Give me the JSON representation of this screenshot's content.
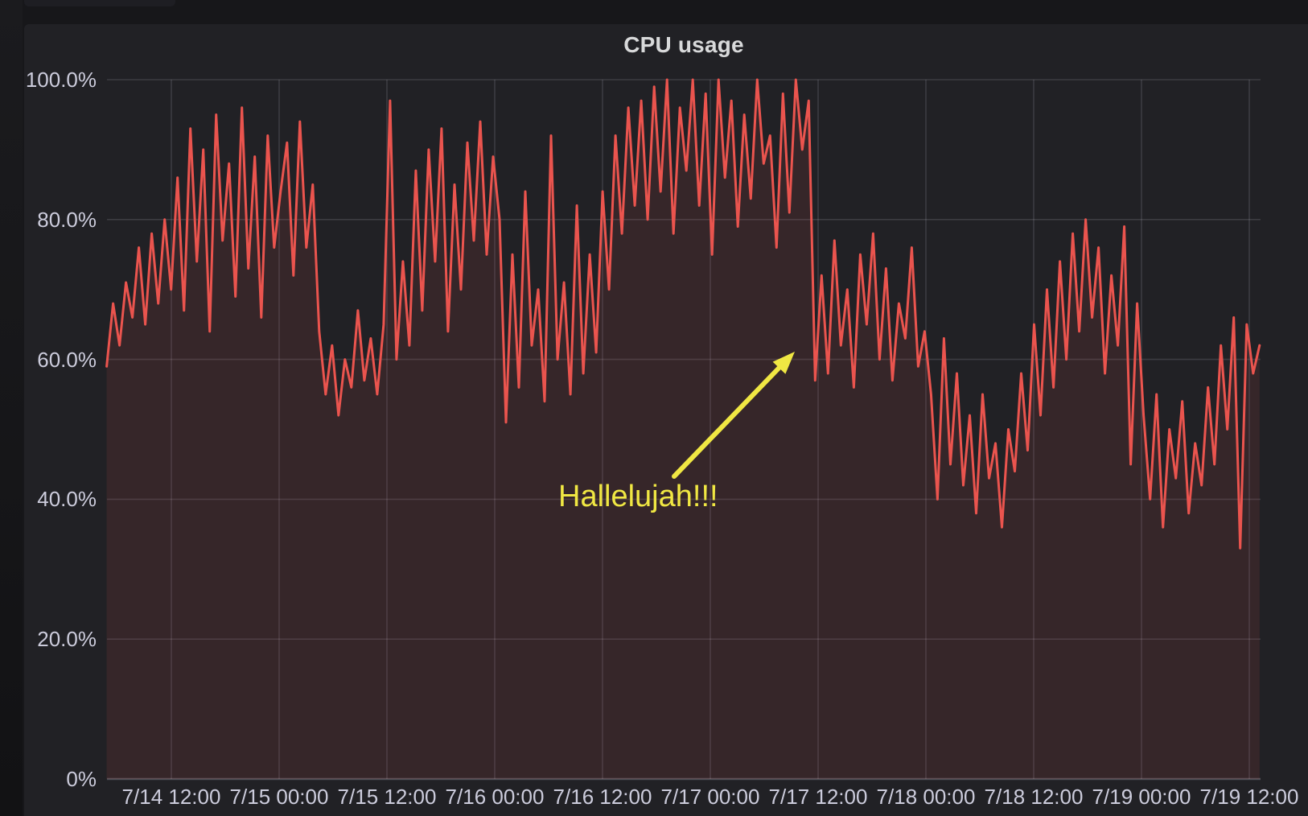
{
  "panel": {
    "title": "CPU usage"
  },
  "annotation": {
    "text": "Hallelujah!!!",
    "color": "#f0e743"
  },
  "colors": {
    "page_background": "#17171a",
    "panel_background": "#212125",
    "line": "#ea544e",
    "fill": "rgba(232,80,78,0.11)",
    "grid": "rgba(204,204,220,0.16)",
    "axis_line": "rgba(204,204,220,0.28)",
    "axis_text": "#ccccdc",
    "title_text": "#d8d9da"
  },
  "chart_data": {
    "type": "line",
    "title": "CPU usage",
    "unit": "percent",
    "ylim": [
      0,
      100
    ],
    "grid": true,
    "legend": "none",
    "y_ticks": [
      {
        "value": 0,
        "label": "0%"
      },
      {
        "value": 20,
        "label": "20.0%"
      },
      {
        "value": 40,
        "label": "40.0%"
      },
      {
        "value": 60,
        "label": "60.0%"
      },
      {
        "value": 80,
        "label": "80.0%"
      },
      {
        "value": 100,
        "label": "100.0%"
      }
    ],
    "x_ticks": [
      {
        "t": 12,
        "label": "7/14 12:00"
      },
      {
        "t": 24,
        "label": "7/15 00:00"
      },
      {
        "t": 36,
        "label": "7/15 12:00"
      },
      {
        "t": 48,
        "label": "7/16 00:00"
      },
      {
        "t": 60,
        "label": "7/16 12:00"
      },
      {
        "t": 72,
        "label": "7/17 00:00"
      },
      {
        "t": 84,
        "label": "7/17 12:00"
      },
      {
        "t": 96,
        "label": "7/18 00:00"
      },
      {
        "t": 108,
        "label": "7/18 12:00"
      },
      {
        "t": 120,
        "label": "7/19 00:00"
      },
      {
        "t": 132,
        "label": "7/19 12:00"
      }
    ],
    "series": [
      {
        "name": "CPU usage",
        "color": "#ea544e",
        "t_start_hours": 4.8,
        "t_step_hours": 0.717,
        "values": [
          59,
          68,
          62,
          71,
          66,
          76,
          65,
          78,
          68,
          80,
          70,
          86,
          67,
          93,
          74,
          90,
          64,
          95,
          77,
          88,
          69,
          96,
          73,
          89,
          66,
          92,
          76,
          84,
          91,
          72,
          94,
          76,
          85,
          64,
          55,
          62,
          52,
          60,
          56,
          67,
          57,
          63,
          55,
          65,
          97,
          60,
          74,
          62,
          87,
          67,
          90,
          74,
          93,
          64,
          85,
          70,
          91,
          77,
          94,
          75,
          89,
          80,
          51,
          75,
          56,
          84,
          62,
          70,
          54,
          92,
          60,
          71,
          55,
          82,
          58,
          75,
          61,
          84,
          70,
          92,
          78,
          96,
          82,
          97,
          80,
          99,
          84,
          100,
          78,
          96,
          87,
          100,
          82,
          98,
          75,
          100,
          86,
          97,
          79,
          95,
          83,
          100,
          88,
          92,
          76,
          98,
          81,
          100,
          90,
          97,
          57,
          72,
          58,
          77,
          62,
          70,
          56,
          75,
          65,
          78,
          60,
          73,
          57,
          68,
          63,
          76,
          59,
          64,
          55,
          40,
          63,
          45,
          58,
          42,
          52,
          38,
          55,
          43,
          48,
          36,
          50,
          44,
          58,
          47,
          65,
          52,
          70,
          56,
          74,
          60,
          78,
          64,
          80,
          66,
          76,
          58,
          72,
          62,
          79,
          45,
          68,
          52,
          40,
          55,
          36,
          50,
          43,
          54,
          38,
          48,
          42,
          56,
          45,
          62,
          50,
          66,
          33,
          65,
          58,
          62
        ]
      }
    ]
  }
}
